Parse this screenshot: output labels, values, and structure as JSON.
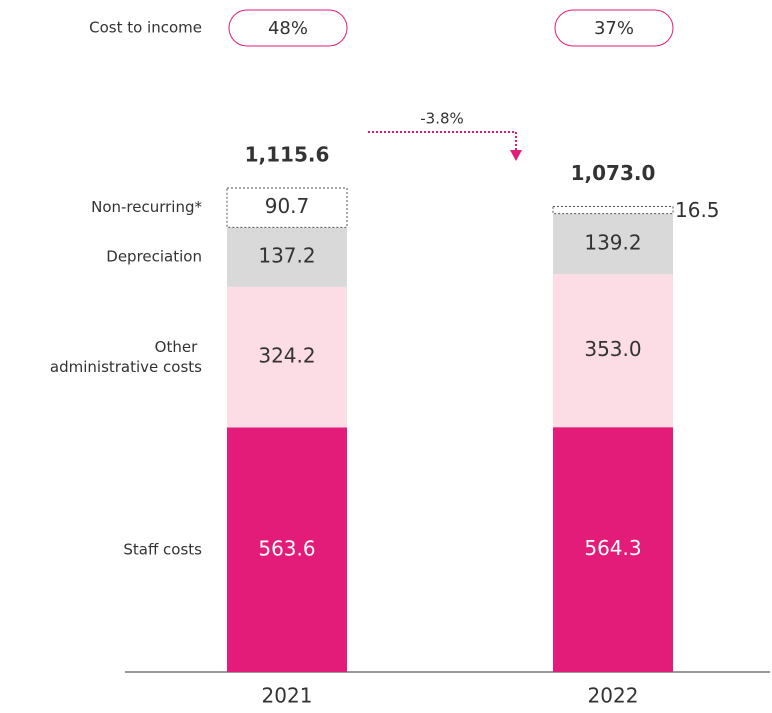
{
  "chart_data": {
    "type": "bar",
    "stacked": true,
    "categories": [
      "2021",
      "2022"
    ],
    "series": [
      {
        "name": "Staff costs",
        "color": "#e31c79",
        "values": [
          563.6,
          564.3
        ],
        "value_labels": [
          "563.6",
          "564.3"
        ]
      },
      {
        "name": "Other administrative costs",
        "color": "#fddde5",
        "values": [
          324.2,
          353.0
        ],
        "value_labels": [
          "324.2",
          "353.0"
        ]
      },
      {
        "name": "Depreciation",
        "color": "#d9d9d9",
        "values": [
          137.2,
          139.2
        ],
        "value_labels": [
          "137.2",
          "139.2"
        ]
      },
      {
        "name": "Non-recurring*",
        "color": "#ffffff",
        "dashed": true,
        "values": [
          90.7,
          16.5
        ],
        "value_labels": [
          "90.7",
          "16.5"
        ]
      }
    ],
    "totals": [
      1115.6,
      1073.0
    ],
    "total_labels": [
      "1,115.6",
      "1,073.0"
    ],
    "cost_to_income": {
      "label": "Cost to income",
      "values": [
        48,
        37
      ],
      "value_labels": [
        "48%",
        "37%"
      ]
    },
    "change": {
      "value": -3.8,
      "label": "-3.8%"
    }
  }
}
